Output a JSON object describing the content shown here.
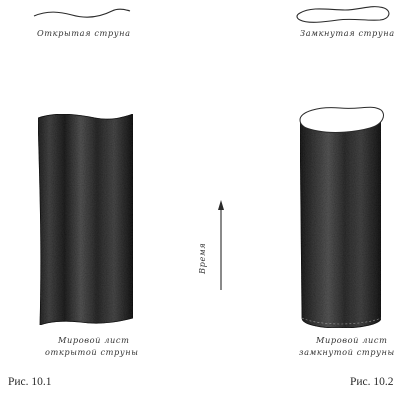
{
  "figures": {
    "left": {
      "string_label": "Открытая струна",
      "sheet_label_line1": "Мировой лист",
      "sheet_label_line2": "открытой струны",
      "caption": "Рис. 10.1"
    },
    "right": {
      "string_label": "Замкнутая струна",
      "sheet_label_line1": "Мировой лист",
      "sheet_label_line2": "замкнутой струны",
      "caption": "Рис. 10.2"
    },
    "time_axis_label": "Время"
  },
  "colors": {
    "sheet_dark": "#1f1f1f",
    "sheet_mid": "#575757",
    "ink": "#2a2a2a"
  }
}
